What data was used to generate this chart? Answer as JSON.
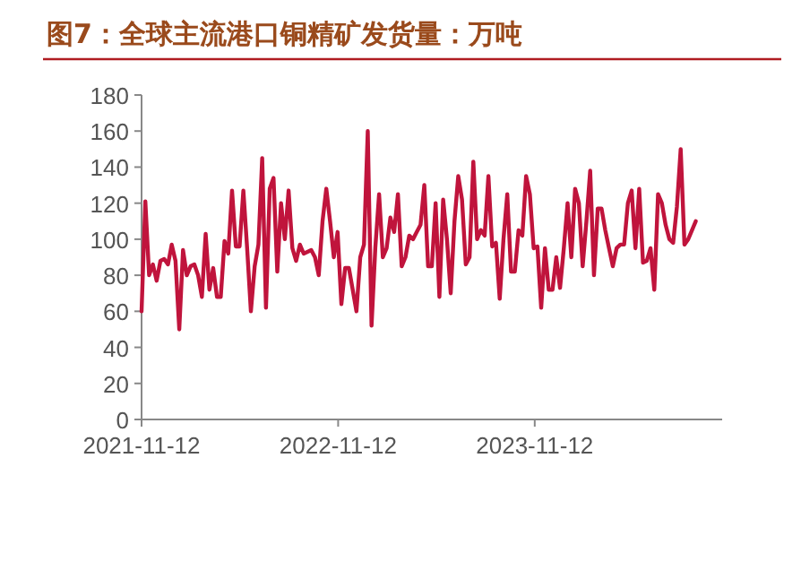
{
  "chart_data": {
    "type": "line",
    "title": "图7：全球主流港口铜精矿发货量：万吨",
    "x": [
      "2021-11-12",
      "2021-11-19",
      "2021-11-26",
      "2021-12-03",
      "2021-12-10",
      "2021-12-17",
      "2021-12-24",
      "2021-12-31",
      "2022-01-07",
      "2022-01-14",
      "2022-01-21",
      "2022-01-28",
      "2022-02-04",
      "2022-02-11",
      "2022-02-18",
      "2022-02-25",
      "2022-03-04",
      "2022-03-11",
      "2022-03-18",
      "2022-03-25",
      "2022-04-01",
      "2022-04-08",
      "2022-04-15",
      "2022-04-22",
      "2022-04-29",
      "2022-05-06",
      "2022-05-13",
      "2022-05-20",
      "2022-05-27",
      "2022-06-03",
      "2022-06-10",
      "2022-06-17",
      "2022-06-24",
      "2022-07-01",
      "2022-07-08",
      "2022-07-15",
      "2022-07-22",
      "2022-07-29",
      "2022-08-05",
      "2022-08-12",
      "2022-08-19",
      "2022-08-26",
      "2022-09-02",
      "2022-09-09",
      "2022-09-16",
      "2022-09-23",
      "2022-09-30",
      "2022-10-07",
      "2022-10-14",
      "2022-10-21",
      "2022-10-28",
      "2022-11-04",
      "2022-11-11",
      "2022-11-18",
      "2022-11-25",
      "2022-12-02",
      "2022-12-09",
      "2022-12-16",
      "2022-12-23",
      "2022-12-30",
      "2023-01-06",
      "2023-01-13",
      "2023-01-20",
      "2023-01-27",
      "2023-02-03",
      "2023-02-10",
      "2023-02-17",
      "2023-02-24",
      "2023-03-03",
      "2023-03-10",
      "2023-03-17",
      "2023-03-24",
      "2023-03-31",
      "2023-04-07",
      "2023-04-14",
      "2023-04-21",
      "2023-04-28",
      "2023-05-05",
      "2023-05-12",
      "2023-05-19",
      "2023-05-26",
      "2023-06-02",
      "2023-06-09",
      "2023-06-16",
      "2023-06-23",
      "2023-06-30",
      "2023-07-07",
      "2023-07-14",
      "2023-07-21",
      "2023-07-28",
      "2023-08-04",
      "2023-08-11",
      "2023-08-18",
      "2023-08-25",
      "2023-09-01",
      "2023-09-08",
      "2023-09-15",
      "2023-09-22",
      "2023-09-29",
      "2023-10-06",
      "2023-10-13",
      "2023-10-20",
      "2023-10-27",
      "2023-11-03",
      "2023-11-10",
      "2023-11-17",
      "2023-11-24",
      "2023-12-01",
      "2023-12-08",
      "2023-12-15",
      "2023-12-22",
      "2023-12-29",
      "2024-01-05",
      "2024-01-12",
      "2024-01-19",
      "2024-01-26",
      "2024-02-02",
      "2024-02-09",
      "2024-02-16",
      "2024-02-23",
      "2024-03-01",
      "2024-03-08",
      "2024-03-15",
      "2024-03-22",
      "2024-03-29",
      "2024-04-05",
      "2024-04-12",
      "2024-04-19",
      "2024-04-26",
      "2024-05-03",
      "2024-05-10",
      "2024-05-17",
      "2024-05-24",
      "2024-05-31",
      "2024-06-07",
      "2024-06-14",
      "2024-06-21",
      "2024-06-28",
      "2024-07-05",
      "2024-07-12",
      "2024-07-19",
      "2024-07-26",
      "2024-08-02",
      "2024-08-09",
      "2024-08-16",
      "2024-08-23",
      "2024-08-30",
      "2024-09-06"
    ],
    "series": [
      {
        "color": "#c0143c",
        "values": [
          60,
          121,
          80,
          86,
          77,
          88,
          89,
          86,
          97,
          88,
          50,
          94,
          80,
          85,
          86,
          80,
          68,
          103,
          72,
          84,
          68,
          68,
          99,
          92,
          127,
          96,
          96,
          127,
          95,
          60,
          85,
          97,
          145,
          62,
          128,
          134,
          82,
          120,
          100,
          127,
          95,
          88,
          97,
          92,
          93,
          94,
          90,
          80,
          110,
          128,
          110,
          90,
          104,
          64,
          84,
          84,
          72,
          60,
          90,
          97,
          160,
          52,
          95,
          125,
          90,
          95,
          112,
          104,
          125,
          85,
          90,
          102,
          100,
          104,
          108,
          130,
          85,
          85,
          120,
          68,
          122,
          100,
          70,
          110,
          135,
          122,
          86,
          90,
          143,
          100,
          105,
          102,
          135,
          96,
          98,
          67,
          100,
          125,
          82,
          82,
          105,
          102,
          135,
          125,
          95,
          96,
          62,
          95,
          72,
          72,
          90,
          73,
          95,
          120,
          90,
          128,
          120,
          85,
          110,
          138,
          80,
          117,
          117,
          105,
          95,
          85,
          95,
          97,
          97,
          120,
          127,
          95,
          128,
          87,
          88,
          95,
          72,
          125,
          120,
          108,
          100,
          98,
          118,
          150,
          97,
          100,
          105,
          110
        ]
      }
    ],
    "xlim": [
      "2021-11-12",
      "2024-10-25"
    ],
    "xticks": [
      {
        "value": "2021-11-12",
        "label": "2021-11-12"
      },
      {
        "value": "2022-11-12",
        "label": "2022-11-12"
      },
      {
        "value": "2023-11-12",
        "label": "2023-11-12"
      }
    ],
    "ylim": [
      0,
      180
    ],
    "yticks": [
      0,
      20,
      40,
      60,
      80,
      100,
      120,
      140,
      160,
      180
    ],
    "grid": false,
    "marker": "none",
    "line_style": "solid"
  }
}
